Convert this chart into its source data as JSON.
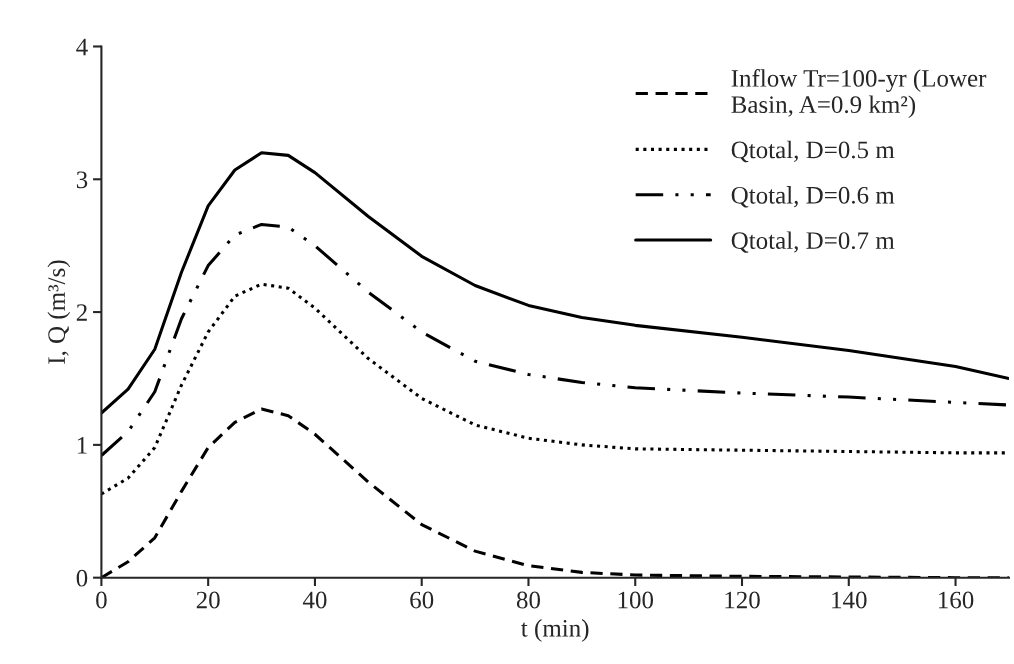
{
  "chart_data": {
    "type": "line",
    "xlabel": "t (min)",
    "ylabel": "I, Q (m³/s)",
    "x": [
      0,
      5,
      10,
      15,
      20,
      25,
      30,
      35,
      40,
      50,
      60,
      70,
      80,
      90,
      100,
      120,
      140,
      160,
      170
    ],
    "series": [
      {
        "name": "Inflow Tr=100-yr (Lower Basin, A=0.9 km²)",
        "color": "#000000",
        "line_style": "dashed",
        "values": [
          0,
          0.12,
          0.3,
          0.65,
          0.98,
          1.17,
          1.27,
          1.22,
          1.08,
          0.72,
          0.4,
          0.2,
          0.09,
          0.04,
          0.02,
          0.01,
          0.005,
          0,
          0
        ]
      },
      {
        "name": "Qtotal, D=0.5 m",
        "color": "#000000",
        "line_style": "dotted",
        "values": [
          0.63,
          0.75,
          0.98,
          1.45,
          1.85,
          2.12,
          2.21,
          2.18,
          2.03,
          1.65,
          1.35,
          1.15,
          1.05,
          1.0,
          0.97,
          0.96,
          0.95,
          0.94,
          0.94
        ]
      },
      {
        "name": "Qtotal, D=0.6 m",
        "color": "#000000",
        "line_style": "dashdot",
        "values": [
          0.92,
          1.1,
          1.4,
          1.95,
          2.35,
          2.58,
          2.66,
          2.64,
          2.5,
          2.15,
          1.85,
          1.63,
          1.53,
          1.47,
          1.43,
          1.39,
          1.36,
          1.32,
          1.3
        ]
      },
      {
        "name": "Qtotal, D=0.7 m",
        "color": "#000000",
        "line_style": "solid",
        "values": [
          1.24,
          1.42,
          1.72,
          2.3,
          2.8,
          3.07,
          3.2,
          3.18,
          3.05,
          2.72,
          2.42,
          2.2,
          2.05,
          1.96,
          1.9,
          1.81,
          1.71,
          1.59,
          1.5
        ]
      }
    ],
    "xlim": [
      0,
      170
    ],
    "ylim": [
      0,
      4
    ],
    "xticks": [
      0,
      20,
      40,
      60,
      80,
      100,
      120,
      140,
      160
    ],
    "yticks": [
      0,
      1,
      2,
      3,
      4
    ],
    "legend": "top right",
    "grid": false,
    "marker": "none"
  }
}
